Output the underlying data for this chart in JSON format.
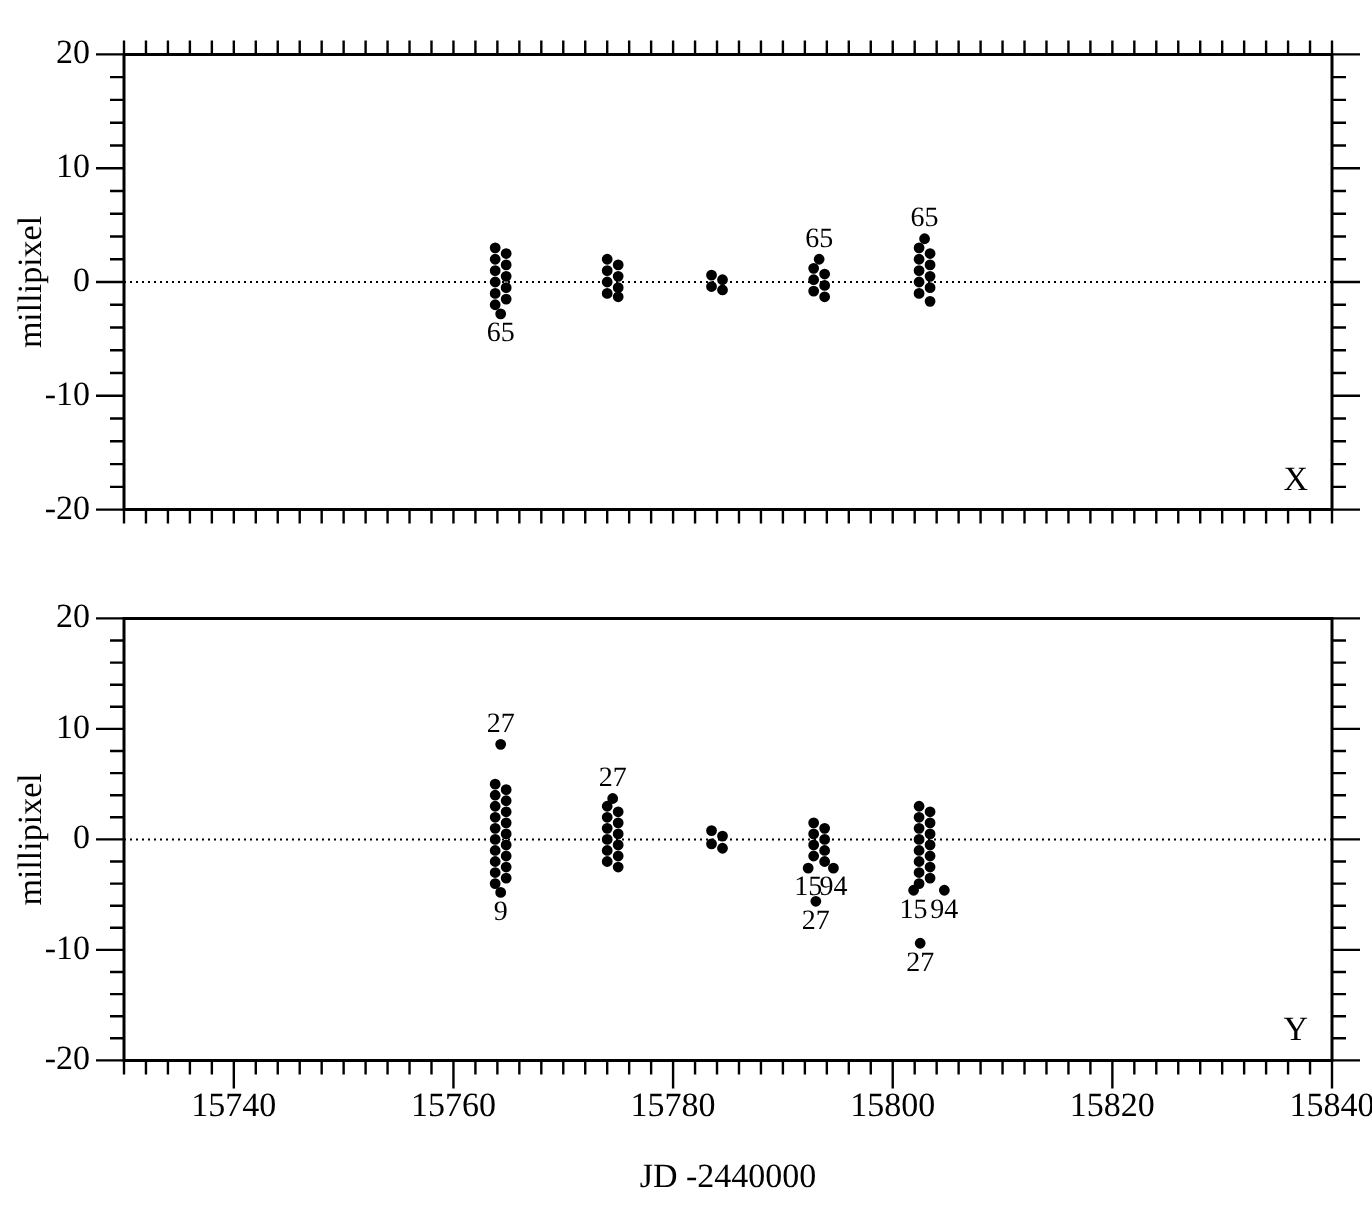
{
  "chart_data": [
    {
      "type": "scatter",
      "ylabel": "millipixel",
      "marker": "circle",
      "grid": false,
      "tick_labels": "y",
      "xlim": [
        15730,
        15840
      ],
      "ylim": [
        -20,
        20
      ],
      "xticks": [
        {
          "value": 15730,
          "label": null
        },
        {
          "value": 15732,
          "label": null
        },
        {
          "value": 15734,
          "label": null
        },
        {
          "value": 15736,
          "label": null
        },
        {
          "value": 15738,
          "label": null
        },
        {
          "value": 15740,
          "label": null
        },
        {
          "value": 15742,
          "label": null
        },
        {
          "value": 15744,
          "label": null
        },
        {
          "value": 15746,
          "label": null
        },
        {
          "value": 15748,
          "label": null
        },
        {
          "value": 15750,
          "label": null
        },
        {
          "value": 15752,
          "label": null
        },
        {
          "value": 15754,
          "label": null
        },
        {
          "value": 15756,
          "label": null
        },
        {
          "value": 15758,
          "label": null
        },
        {
          "value": 15760,
          "label": null
        },
        {
          "value": 15762,
          "label": null
        },
        {
          "value": 15764,
          "label": null
        },
        {
          "value": 15766,
          "label": null
        },
        {
          "value": 15768,
          "label": null
        },
        {
          "value": 15770,
          "label": null
        },
        {
          "value": 15772,
          "label": null
        },
        {
          "value": 15774,
          "label": null
        },
        {
          "value": 15776,
          "label": null
        },
        {
          "value": 15778,
          "label": null
        },
        {
          "value": 15780,
          "label": null
        },
        {
          "value": 15782,
          "label": null
        },
        {
          "value": 15784,
          "label": null
        },
        {
          "value": 15786,
          "label": null
        },
        {
          "value": 15788,
          "label": null
        },
        {
          "value": 15790,
          "label": null
        },
        {
          "value": 15792,
          "label": null
        },
        {
          "value": 15794,
          "label": null
        },
        {
          "value": 15796,
          "label": null
        },
        {
          "value": 15798,
          "label": null
        },
        {
          "value": 15800,
          "label": null
        },
        {
          "value": 15802,
          "label": null
        },
        {
          "value": 15804,
          "label": null
        },
        {
          "value": 15806,
          "label": null
        },
        {
          "value": 15808,
          "label": null
        },
        {
          "value": 15810,
          "label": null
        },
        {
          "value": 15812,
          "label": null
        },
        {
          "value": 15814,
          "label": null
        },
        {
          "value": 15816,
          "label": null
        },
        {
          "value": 15818,
          "label": null
        },
        {
          "value": 15820,
          "label": null
        },
        {
          "value": 15822,
          "label": null
        },
        {
          "value": 15824,
          "label": null
        },
        {
          "value": 15826,
          "label": null
        },
        {
          "value": 15828,
          "label": null
        },
        {
          "value": 15830,
          "label": null
        },
        {
          "value": 15832,
          "label": null
        },
        {
          "value": 15834,
          "label": null
        },
        {
          "value": 15836,
          "label": null
        },
        {
          "value": 15838,
          "label": null
        },
        {
          "value": 15840,
          "label": null
        }
      ],
      "yticks": [
        -20,
        {
          "value": -18,
          "label": null
        },
        {
          "value": -16,
          "label": null
        },
        {
          "value": -14,
          "label": null
        },
        {
          "value": -12,
          "label": null
        },
        -10,
        {
          "value": -8,
          "label": null
        },
        {
          "value": -6,
          "label": null
        },
        {
          "value": -4,
          "label": null
        },
        {
          "value": -2,
          "label": null
        },
        0,
        {
          "value": 2,
          "label": null
        },
        {
          "value": 4,
          "label": null
        },
        {
          "value": 6,
          "label": null
        },
        {
          "value": 8,
          "label": null
        },
        10,
        {
          "value": 12,
          "label": null
        },
        {
          "value": 14,
          "label": null
        },
        {
          "value": 16,
          "label": null
        },
        {
          "value": 18,
          "label": null
        },
        20
      ],
      "ref_lines": [
        {
          "axis": "y",
          "value": 0,
          "line_style": "dotted"
        }
      ],
      "series": [
        {
          "color": "#000000",
          "x": [
            15763.8,
            15763.8,
            15763.8,
            15763.8,
            15763.8,
            15763.8,
            15764.8,
            15764.8,
            15764.8,
            15764.8,
            15764.8,
            15764.3,
            15774.0,
            15774.0,
            15774.0,
            15774.0,
            15775.0,
            15775.0,
            15775.0,
            15775.0,
            15783.5,
            15783.5,
            15784.5,
            15784.5,
            15792.8,
            15792.8,
            15792.8,
            15793.8,
            15793.8,
            15793.8,
            15793.3,
            15802.4,
            15802.4,
            15802.4,
            15802.4,
            15802.4,
            15803.4,
            15803.4,
            15803.4,
            15803.4,
            15803.4,
            15802.9
          ],
          "values": [
            3,
            2,
            1,
            0,
            -1,
            -2,
            2.5,
            1.5,
            0.5,
            -0.5,
            -1.5,
            -2.8,
            2,
            1,
            0,
            -1,
            1.5,
            0.5,
            -0.5,
            -1.3,
            0.6,
            -0.4,
            0.2,
            -0.7,
            1.2,
            0.2,
            -0.8,
            0.7,
            -0.3,
            -1.3,
            2.0,
            3,
            2,
            1,
            0,
            -1,
            2.5,
            1.5,
            0.5,
            -0.5,
            -1.7,
            3.8
          ]
        }
      ],
      "annotations": [
        "X",
        {
          "text": "65",
          "x": 15764.3,
          "y": -2.8
        },
        {
          "text": "65",
          "x": 15793.3,
          "y": 2.0
        },
        {
          "text": "65",
          "x": 15802.9,
          "y": 3.8
        }
      ]
    },
    {
      "type": "scatter",
      "xlabel": "JD -2440000",
      "ylabel": "millipixel",
      "marker": "circle",
      "grid": false,
      "xlim": [
        15730,
        15840
      ],
      "ylim": [
        -20,
        20
      ],
      "xticks": [
        {
          "value": 15730,
          "label": null
        },
        {
          "value": 15732,
          "label": null
        },
        {
          "value": 15734,
          "label": null
        },
        {
          "value": 15736,
          "label": null
        },
        {
          "value": 15738,
          "label": null
        },
        15740,
        {
          "value": 15742,
          "label": null
        },
        {
          "value": 15744,
          "label": null
        },
        {
          "value": 15746,
          "label": null
        },
        {
          "value": 15748,
          "label": null
        },
        {
          "value": 15750,
          "label": null
        },
        {
          "value": 15752,
          "label": null
        },
        {
          "value": 15754,
          "label": null
        },
        {
          "value": 15756,
          "label": null
        },
        {
          "value": 15758,
          "label": null
        },
        15760,
        {
          "value": 15762,
          "label": null
        },
        {
          "value": 15764,
          "label": null
        },
        {
          "value": 15766,
          "label": null
        },
        {
          "value": 15768,
          "label": null
        },
        {
          "value": 15770,
          "label": null
        },
        {
          "value": 15772,
          "label": null
        },
        {
          "value": 15774,
          "label": null
        },
        {
          "value": 15776,
          "label": null
        },
        {
          "value": 15778,
          "label": null
        },
        15780,
        {
          "value": 15782,
          "label": null
        },
        {
          "value": 15784,
          "label": null
        },
        {
          "value": 15786,
          "label": null
        },
        {
          "value": 15788,
          "label": null
        },
        {
          "value": 15790,
          "label": null
        },
        {
          "value": 15792,
          "label": null
        },
        {
          "value": 15794,
          "label": null
        },
        {
          "value": 15796,
          "label": null
        },
        {
          "value": 15798,
          "label": null
        },
        15800,
        {
          "value": 15802,
          "label": null
        },
        {
          "value": 15804,
          "label": null
        },
        {
          "value": 15806,
          "label": null
        },
        {
          "value": 15808,
          "label": null
        },
        {
          "value": 15810,
          "label": null
        },
        {
          "value": 15812,
          "label": null
        },
        {
          "value": 15814,
          "label": null
        },
        {
          "value": 15816,
          "label": null
        },
        {
          "value": 15818,
          "label": null
        },
        15820,
        {
          "value": 15822,
          "label": null
        },
        {
          "value": 15824,
          "label": null
        },
        {
          "value": 15826,
          "label": null
        },
        {
          "value": 15828,
          "label": null
        },
        {
          "value": 15830,
          "label": null
        },
        {
          "value": 15832,
          "label": null
        },
        {
          "value": 15834,
          "label": null
        },
        {
          "value": 15836,
          "label": null
        },
        {
          "value": 15838,
          "label": null
        },
        15840
      ],
      "yticks": [
        -20,
        {
          "value": -18,
          "label": null
        },
        {
          "value": -16,
          "label": null
        },
        {
          "value": -14,
          "label": null
        },
        {
          "value": -12,
          "label": null
        },
        -10,
        {
          "value": -8,
          "label": null
        },
        {
          "value": -6,
          "label": null
        },
        {
          "value": -4,
          "label": null
        },
        {
          "value": -2,
          "label": null
        },
        0,
        {
          "value": 2,
          "label": null
        },
        {
          "value": 4,
          "label": null
        },
        {
          "value": 6,
          "label": null
        },
        {
          "value": 8,
          "label": null
        },
        10,
        {
          "value": 12,
          "label": null
        },
        {
          "value": 14,
          "label": null
        },
        {
          "value": 16,
          "label": null
        },
        {
          "value": 18,
          "label": null
        },
        20
      ],
      "ref_lines": [
        {
          "axis": "y",
          "value": 0,
          "line_style": "dotted"
        }
      ],
      "series": [
        {
          "color": "#000000",
          "x": [
            15763.8,
            15763.8,
            15763.8,
            15763.8,
            15763.8,
            15763.8,
            15763.8,
            15763.8,
            15763.8,
            15763.8,
            15764.8,
            15764.8,
            15764.8,
            15764.8,
            15764.8,
            15764.8,
            15764.8,
            15764.8,
            15764.8,
            15764.3,
            15764.3,
            15774.0,
            15774.0,
            15774.0,
            15774.0,
            15774.0,
            15774.0,
            15775.0,
            15775.0,
            15775.0,
            15775.0,
            15775.0,
            15775.0,
            15774.5,
            15783.5,
            15783.5,
            15784.5,
            15784.5,
            15792.8,
            15792.8,
            15792.8,
            15792.8,
            15793.8,
            15793.8,
            15793.8,
            15793.8,
            15792.3,
            15794.6,
            15793.0,
            15802.4,
            15802.4,
            15802.4,
            15802.4,
            15802.4,
            15802.4,
            15802.4,
            15802.4,
            15803.4,
            15803.4,
            15803.4,
            15803.4,
            15803.4,
            15803.4,
            15803.4,
            15801.9,
            15804.7,
            15802.5
          ],
          "values": [
            5,
            4,
            3,
            2,
            1,
            0,
            -1,
            -2,
            -3,
            -4,
            4.5,
            3.5,
            2.5,
            1.5,
            0.5,
            -0.5,
            -1.5,
            -2.5,
            -3.5,
            8.6,
            -4.8,
            3,
            2,
            1,
            0,
            -1,
            -2,
            2.5,
            1.5,
            0.5,
            -0.5,
            -1.5,
            -2.5,
            3.7,
            0.8,
            -0.4,
            0.3,
            -0.8,
            1.5,
            0.5,
            -0.5,
            -1.5,
            1,
            0,
            -1,
            -2,
            -2.6,
            -2.6,
            -5.6,
            3,
            2,
            1,
            0,
            -1,
            -2,
            -3,
            -4,
            2.5,
            1.5,
            0.5,
            -0.5,
            -1.5,
            -2.5,
            -3.5,
            -4.6,
            -4.6,
            -9.4
          ]
        }
      ],
      "annotations": [
        "Y",
        {
          "text": "27",
          "x": 15764.3,
          "y": 8.6
        },
        {
          "text": "9",
          "x": 15764.3,
          "y": -4.8
        },
        {
          "text": "27",
          "x": 15774.5,
          "y": 3.7
        },
        {
          "text": "15",
          "x": 15792.3,
          "y": -2.6
        },
        {
          "text": "94",
          "x": 15794.6,
          "y": -2.6
        },
        {
          "text": "27",
          "x": 15793.0,
          "y": -5.6
        },
        {
          "text": "15",
          "x": 15801.9,
          "y": -4.6
        },
        {
          "text": "94",
          "x": 15804.7,
          "y": -4.6
        },
        {
          "text": "27",
          "x": 15802.5,
          "y": -9.4
        }
      ]
    }
  ]
}
